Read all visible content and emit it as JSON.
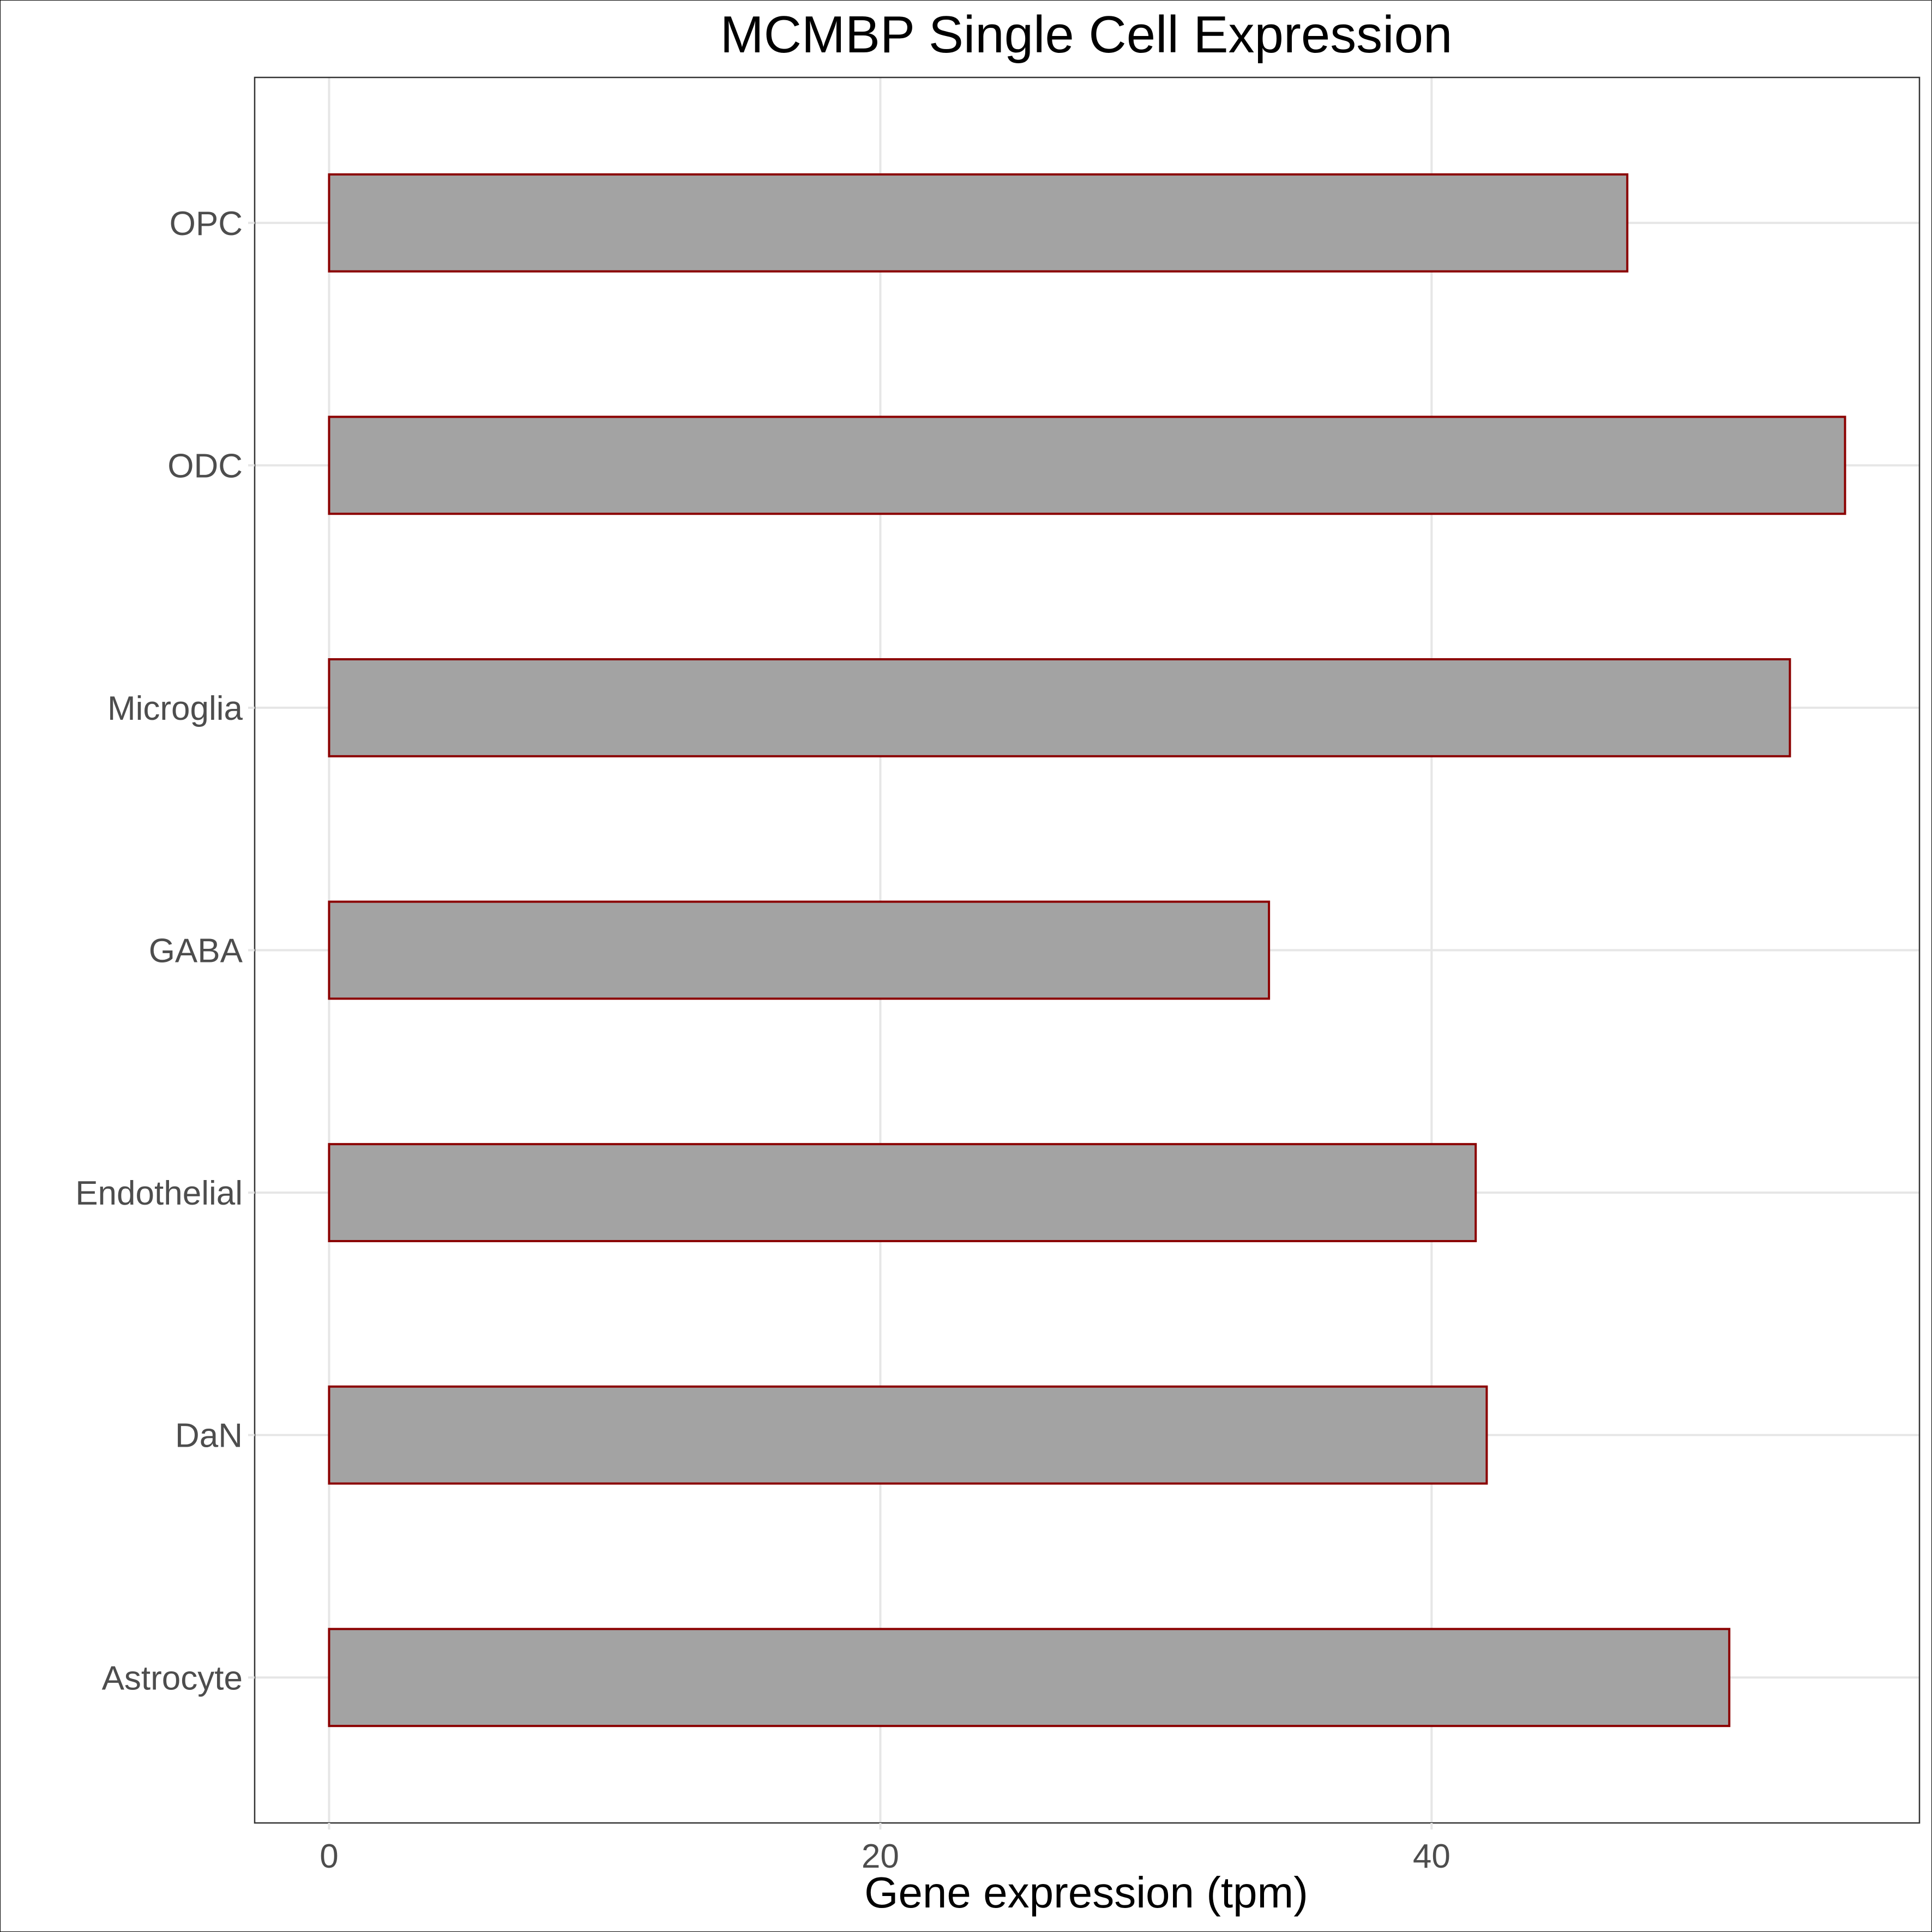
{
  "chart_data": {
    "type": "bar",
    "orientation": "horizontal",
    "title": "MCMBP Single Cell Expression",
    "xlabel": "Gene expression (tpm)",
    "ylabel": "",
    "categories": [
      "Astrocyte",
      "DaN",
      "Endothelial",
      "GABA",
      "Microglia",
      "ODC",
      "OPC"
    ],
    "values": [
      50.8,
      42.0,
      41.6,
      34.1,
      53.0,
      55.0,
      47.1
    ],
    "xlim": [
      -2.7,
      57.7
    ],
    "x_ticks": [
      0,
      20,
      40
    ],
    "x_tick_labels": [
      "0",
      "20",
      "40"
    ],
    "grid": true,
    "legend": "none",
    "colors": {
      "bar_fill": "#a3a3a3",
      "bar_outline": "#8b0000",
      "grid": "#e6e6e6",
      "panel_border": "#333333",
      "tick_label": "#4d4d4d"
    }
  }
}
